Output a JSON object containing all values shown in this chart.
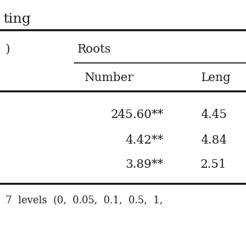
{
  "title_partial": "ting",
  "col_group": "Roots",
  "col_headers": [
    "Number",
    "Leng"
  ],
  "rows": [
    [
      "245.60**",
      "4.45"
    ],
    [
      "4.42**",
      "4.84"
    ],
    [
      "3.89**",
      "2.51"
    ]
  ],
  "footnote": "7  levels  (0,  0.05,  0.1,  0.5,  1,",
  "left_col_partial": ")",
  "bg_color": "#ffffff",
  "text_color": "#1a1a1a",
  "font_size": 12,
  "title_fontsize": 14
}
